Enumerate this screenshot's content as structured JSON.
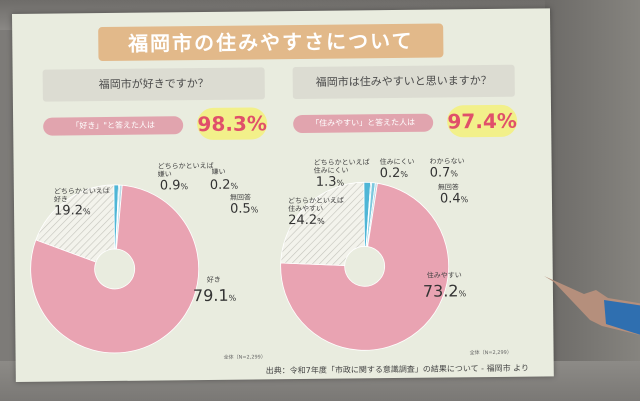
{
  "title": "福岡市の住みやすさについて",
  "source": "出典：令和7年度「市政に関する意識調査」の結果について - 福岡市 より",
  "chart_data": [
    {
      "type": "pie",
      "question": "福岡市が好きですか？",
      "highlight_label": "「好き」\"と答えた人は",
      "highlight_value": "98.3%",
      "note": "全体（N=2,299）",
      "slices": [
        {
          "label": "好き",
          "value": 79.1,
          "color": "#e9a3b2"
        },
        {
          "label": "どちらかといえば好き",
          "value": 19.2,
          "color": "#f0f0ea"
        },
        {
          "label": "どちらかといえば嫌い",
          "value": 0.9,
          "color": "#4fb6d6"
        },
        {
          "label": "嫌い",
          "value": 0.2,
          "color": "#2b8fb3"
        },
        {
          "label": "無回答",
          "value": 0.5,
          "color": "#b9dce8"
        }
      ]
    },
    {
      "type": "pie",
      "question": "福岡市は住みやすいと思いますか？",
      "highlight_label": "「住みやすい」と答えた人は",
      "highlight_value": "97.4%",
      "note": "全体（N=2,299）",
      "slices": [
        {
          "label": "住みやすい",
          "value": 73.2,
          "color": "#e9a3b2"
        },
        {
          "label": "どちらかといえば住みやすい",
          "value": 24.2,
          "color": "#f0f0ea"
        },
        {
          "label": "どちらかといえば住みにくい",
          "value": 1.3,
          "color": "#4fb6d6"
        },
        {
          "label": "住みにくい",
          "value": 0.2,
          "color": "#2b8fb3"
        },
        {
          "label": "わからない",
          "value": 0.7,
          "color": "#7cc8de"
        },
        {
          "label": "無回答",
          "value": 0.4,
          "color": "#b9dce8"
        }
      ]
    }
  ],
  "p1": {
    "s0_label": "好き",
    "s0_value": "79.1",
    "s1_label_a": "どちらかといえば",
    "s1_label_b": "好き",
    "s1_value": "19.2",
    "s2_label_a": "どちらかといえば",
    "s2_label_b": "嫌い",
    "s2_value": "0.9",
    "s3_label": "嫌い",
    "s3_value": "0.2",
    "s4_label": "無回答",
    "s4_value": "0.5"
  },
  "p2": {
    "s0_label": "住みやすい",
    "s0_value": "73.2",
    "s1_label_a": "どちらかといえば",
    "s1_label_b": "住みやすい",
    "s1_value": "24.2",
    "s2_label_a": "どちらかといえば",
    "s2_label_b": "住みにくい",
    "s2_value": "1.3",
    "s3_label": "住みにくい",
    "s3_value": "0.2",
    "s4_label": "わからない",
    "s4_value": "0.7",
    "s5_label": "無回答",
    "s5_value": "0.4"
  },
  "pct": "%"
}
